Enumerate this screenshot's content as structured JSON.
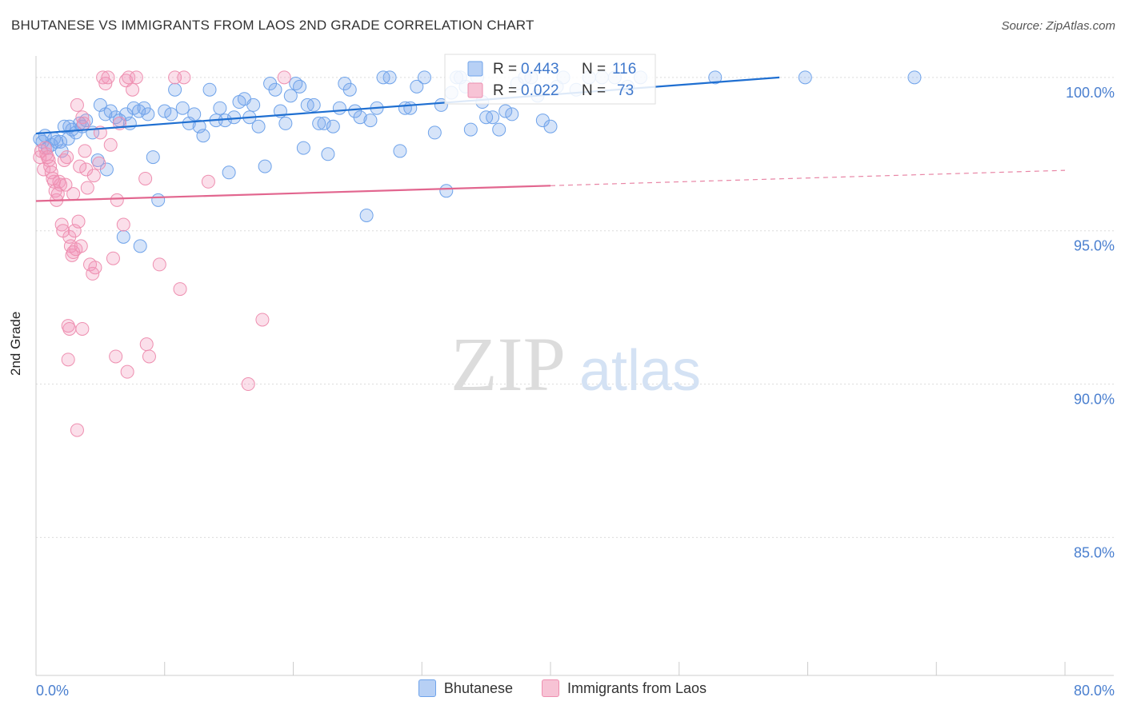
{
  "header": {
    "title": "BHUTANESE VS IMMIGRANTS FROM LAOS 2ND GRADE CORRELATION CHART",
    "source": "Source: ZipAtlas.com"
  },
  "watermark": {
    "zip": "ZIP",
    "atlas": "atlas"
  },
  "stats": [
    {
      "r_label": "R =",
      "r_value": "0.443",
      "n_label": "N =",
      "n_value": "116",
      "color": "#6fa3ea",
      "fill": "#b7d0f5"
    },
    {
      "r_label": "R =",
      "r_value": "0.022",
      "n_label": "N =",
      "n_value": "73",
      "color": "#ee8fb0",
      "fill": "#f7c3d5"
    }
  ],
  "colors": {
    "blue": "#5b93e6",
    "blue_line": "#1f6fd1",
    "pink": "#ee8fb0",
    "pink_line": "#e2668f",
    "axis_text": "#4a7fcf"
  },
  "chart_data": {
    "type": "scatter",
    "title": "BHUTANESE VS IMMIGRANTS FROM LAOS 2ND GRADE CORRELATION CHART",
    "xlabel": "",
    "ylabel": "2nd Grade",
    "xlim": [
      0,
      80
    ],
    "ylim": [
      80.5,
      100.7
    ],
    "x_tick_labels": [
      "0.0%",
      "80.0%"
    ],
    "y_ticks": [
      85,
      90,
      95,
      100
    ],
    "y_tick_labels": [
      "85.0%",
      "90.0%",
      "95.0%",
      "100.0%"
    ],
    "grid": true,
    "legend": "bottom",
    "series": [
      {
        "name": "Bhutanese",
        "color": "#5b93e6",
        "trend": {
          "x": [
            0,
            57.8
          ],
          "y": [
            98.17,
            100.0
          ]
        },
        "points": [
          [
            0.3,
            98.0
          ],
          [
            0.5,
            97.9
          ],
          [
            0.7,
            98.1
          ],
          [
            0.9,
            97.7
          ],
          [
            1.2,
            97.8
          ],
          [
            1.4,
            98.0
          ],
          [
            1.6,
            97.9
          ],
          [
            2.0,
            97.6
          ],
          [
            2.2,
            98.4
          ],
          [
            2.5,
            98.0
          ],
          [
            2.8,
            98.3
          ],
          [
            3.1,
            98.2
          ],
          [
            3.4,
            98.5
          ],
          [
            3.6,
            98.4
          ],
          [
            3.9,
            98.6
          ],
          [
            4.4,
            98.2
          ],
          [
            4.8,
            97.3
          ],
          [
            5.0,
            99.1
          ],
          [
            5.4,
            98.8
          ],
          [
            5.8,
            98.9
          ],
          [
            6.2,
            98.7
          ],
          [
            6.5,
            98.6
          ],
          [
            7.0,
            98.8
          ],
          [
            7.3,
            98.5
          ],
          [
            7.6,
            99.0
          ],
          [
            8.0,
            98.9
          ],
          [
            8.4,
            99.0
          ],
          [
            8.7,
            98.8
          ],
          [
            9.1,
            97.4
          ],
          [
            9.5,
            96.0
          ],
          [
            10.0,
            98.9
          ],
          [
            10.5,
            98.8
          ],
          [
            10.8,
            99.6
          ],
          [
            11.4,
            99.0
          ],
          [
            11.9,
            98.5
          ],
          [
            12.3,
            98.8
          ],
          [
            12.7,
            98.4
          ],
          [
            13.0,
            98.1
          ],
          [
            13.5,
            99.6
          ],
          [
            14.0,
            98.6
          ],
          [
            14.3,
            99.0
          ],
          [
            14.7,
            98.6
          ],
          [
            15.0,
            96.9
          ],
          [
            15.4,
            98.7
          ],
          [
            15.8,
            99.2
          ],
          [
            16.2,
            99.3
          ],
          [
            16.6,
            98.7
          ],
          [
            16.9,
            99.1
          ],
          [
            17.3,
            98.4
          ],
          [
            17.8,
            97.1
          ],
          [
            18.2,
            99.8
          ],
          [
            18.6,
            99.6
          ],
          [
            19.0,
            98.9
          ],
          [
            19.4,
            98.5
          ],
          [
            19.8,
            99.4
          ],
          [
            20.2,
            99.8
          ],
          [
            20.5,
            99.7
          ],
          [
            20.8,
            97.7
          ],
          [
            21.1,
            99.1
          ],
          [
            21.6,
            99.1
          ],
          [
            22.0,
            98.5
          ],
          [
            22.4,
            98.5
          ],
          [
            22.7,
            97.5
          ],
          [
            23.1,
            98.4
          ],
          [
            23.6,
            99.0
          ],
          [
            24.0,
            99.8
          ],
          [
            24.4,
            99.6
          ],
          [
            24.8,
            98.9
          ],
          [
            25.2,
            98.7
          ],
          [
            25.7,
            95.5
          ],
          [
            26.0,
            98.6
          ],
          [
            26.5,
            99.0
          ],
          [
            27.0,
            100.0
          ],
          [
            27.5,
            100.0
          ],
          [
            28.3,
            97.6
          ],
          [
            28.7,
            99.0
          ],
          [
            29.1,
            99.0
          ],
          [
            29.6,
            99.7
          ],
          [
            30.2,
            100.0
          ],
          [
            31.0,
            98.2
          ],
          [
            31.5,
            99.1
          ],
          [
            31.9,
            96.3
          ],
          [
            32.3,
            99.5
          ],
          [
            32.7,
            100.0
          ],
          [
            33.0,
            100.0
          ],
          [
            33.4,
            99.7
          ],
          [
            33.8,
            98.3
          ],
          [
            34.3,
            100.0
          ],
          [
            34.7,
            99.2
          ],
          [
            35.0,
            98.7
          ],
          [
            35.5,
            98.7
          ],
          [
            36.0,
            98.3
          ],
          [
            36.5,
            98.9
          ],
          [
            37.0,
            98.8
          ],
          [
            37.4,
            99.8
          ],
          [
            38.0,
            100.0
          ],
          [
            38.5,
            100.0
          ],
          [
            39.0,
            99.4
          ],
          [
            39.4,
            98.6
          ],
          [
            40.0,
            98.4
          ],
          [
            40.5,
            99.7
          ],
          [
            41.0,
            100.0
          ],
          [
            42.0,
            99.6
          ],
          [
            43.0,
            100.0
          ],
          [
            44.0,
            100.0
          ],
          [
            45.0,
            100.0
          ],
          [
            46.0,
            99.7
          ],
          [
            47.0,
            100.0
          ],
          [
            52.8,
            100.0
          ],
          [
            59.8,
            100.0
          ],
          [
            68.3,
            100.0
          ],
          [
            5.5,
            97.0
          ],
          [
            8.1,
            94.5
          ],
          [
            6.8,
            94.8
          ],
          [
            2.6,
            98.4
          ],
          [
            1.9,
            97.9
          ]
        ]
      },
      {
        "name": "Immigrants from Laos",
        "color": "#ee8fb0",
        "trend": {
          "x": [
            0,
            40
          ],
          "y": [
            95.97,
            96.47
          ]
        },
        "trend_dashed": {
          "x": [
            40,
            80
          ],
          "y": [
            96.47,
            96.97
          ]
        },
        "points": [
          [
            0.3,
            97.4
          ],
          [
            0.4,
            97.6
          ],
          [
            0.6,
            97.0
          ],
          [
            0.8,
            97.5
          ],
          [
            1.0,
            97.3
          ],
          [
            1.1,
            97.1
          ],
          [
            1.2,
            96.9
          ],
          [
            1.4,
            96.6
          ],
          [
            1.5,
            96.3
          ],
          [
            1.6,
            96.0
          ],
          [
            1.7,
            96.2
          ],
          [
            1.8,
            96.6
          ],
          [
            1.9,
            96.5
          ],
          [
            2.0,
            95.2
          ],
          [
            2.1,
            95.0
          ],
          [
            2.2,
            97.3
          ],
          [
            2.3,
            96.5
          ],
          [
            2.4,
            97.4
          ],
          [
            2.6,
            94.8
          ],
          [
            2.7,
            94.5
          ],
          [
            2.8,
            94.2
          ],
          [
            2.9,
            94.3
          ],
          [
            3.0,
            95.0
          ],
          [
            3.1,
            94.4
          ],
          [
            3.2,
            99.1
          ],
          [
            3.3,
            95.3
          ],
          [
            3.5,
            94.5
          ],
          [
            3.6,
            98.7
          ],
          [
            3.7,
            98.5
          ],
          [
            3.8,
            97.6
          ],
          [
            3.9,
            97.0
          ],
          [
            4.0,
            96.4
          ],
          [
            4.2,
            93.9
          ],
          [
            4.4,
            93.6
          ],
          [
            4.6,
            93.8
          ],
          [
            4.9,
            97.2
          ],
          [
            5.0,
            98.2
          ],
          [
            5.2,
            100.0
          ],
          [
            5.4,
            99.8
          ],
          [
            5.6,
            100.0
          ],
          [
            5.8,
            97.8
          ],
          [
            6.0,
            94.1
          ],
          [
            6.3,
            96.0
          ],
          [
            6.5,
            98.5
          ],
          [
            6.8,
            95.2
          ],
          [
            7.0,
            99.9
          ],
          [
            7.2,
            100.0
          ],
          [
            7.5,
            99.6
          ],
          [
            7.8,
            100.0
          ],
          [
            8.5,
            96.7
          ],
          [
            9.6,
            93.9
          ],
          [
            10.8,
            100.0
          ],
          [
            11.2,
            93.1
          ],
          [
            13.4,
            96.6
          ],
          [
            17.6,
            92.1
          ],
          [
            19.3,
            100.0
          ],
          [
            2.5,
            91.9
          ],
          [
            2.6,
            91.8
          ],
          [
            3.6,
            91.8
          ],
          [
            2.5,
            90.8
          ],
          [
            6.2,
            90.9
          ],
          [
            8.6,
            91.3
          ],
          [
            8.8,
            90.9
          ],
          [
            7.1,
            90.4
          ],
          [
            16.5,
            90.0
          ],
          [
            3.2,
            88.5
          ],
          [
            0.7,
            97.7
          ],
          [
            1.3,
            96.7
          ],
          [
            4.5,
            96.8
          ],
          [
            2.9,
            96.2
          ],
          [
            3.4,
            97.1
          ],
          [
            11.5,
            100.0
          ],
          [
            0.9,
            97.4
          ]
        ]
      }
    ]
  }
}
